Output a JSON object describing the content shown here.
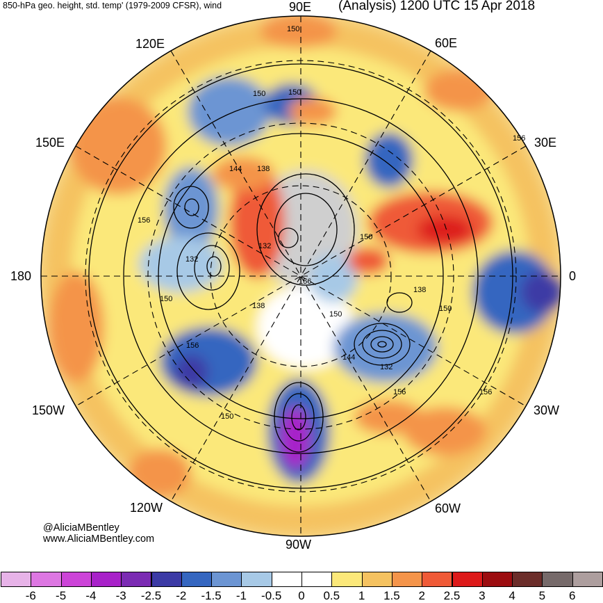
{
  "header": {
    "left_title": "850-hPa geo. height, std. temp' (1979-2009 CFSR), wind",
    "right_title": "(Analysis) 1200 UTC 15 Apr 2018"
  },
  "longitude_labels": [
    {
      "id": "90e",
      "text": "90E"
    },
    {
      "id": "60e",
      "text": "60E"
    },
    {
      "id": "120e",
      "text": "120E"
    },
    {
      "id": "150e",
      "text": "150E"
    },
    {
      "id": "30e",
      "text": "30E"
    },
    {
      "id": "180",
      "text": "180"
    },
    {
      "id": "0",
      "text": "0"
    },
    {
      "id": "150w",
      "text": "150W"
    },
    {
      "id": "30w",
      "text": "30W"
    },
    {
      "id": "120w",
      "text": "120W"
    },
    {
      "id": "60w",
      "text": "60W"
    },
    {
      "id": "90w",
      "text": "90W"
    }
  ],
  "contour_labels": [
    "150",
    "150",
    "150",
    "144",
    "138",
    "156",
    "132",
    "132",
    "150",
    "138",
    "138",
    "156",
    "144",
    "150",
    "132",
    "156",
    "156",
    "150",
    "150",
    "156",
    "156",
    "150"
  ],
  "credits": {
    "handle": "@AliciaMBentley",
    "website": "www.AliciaMBentley.com"
  },
  "colorbar": {
    "ticks": [
      "-6",
      "-5",
      "-4",
      "-3",
      "-2.5",
      "-2",
      "-1.5",
      "-1",
      "-0.5",
      "0",
      "0.5",
      "1",
      "1.5",
      "2",
      "2.5",
      "3",
      "4",
      "5",
      "6"
    ],
    "colors": [
      "#e7b3e8",
      "#dd77e2",
      "#cc44d8",
      "#a821c9",
      "#7b2bb3",
      "#3c3aa5",
      "#3566c0",
      "#6c95d3",
      "#a7c9e6",
      "#ffffff",
      "#ffffff",
      "#fbe87a",
      "#f5c260",
      "#f4944a",
      "#ef5a37",
      "#dd1a1a",
      "#9c0d10",
      "#6b2d2a",
      "#766a6a",
      "#ad9e9e"
    ]
  },
  "colors": {
    "land_gray": "#bdbdbd",
    "cold": "#6c95d3",
    "warm": "#f4944a"
  }
}
